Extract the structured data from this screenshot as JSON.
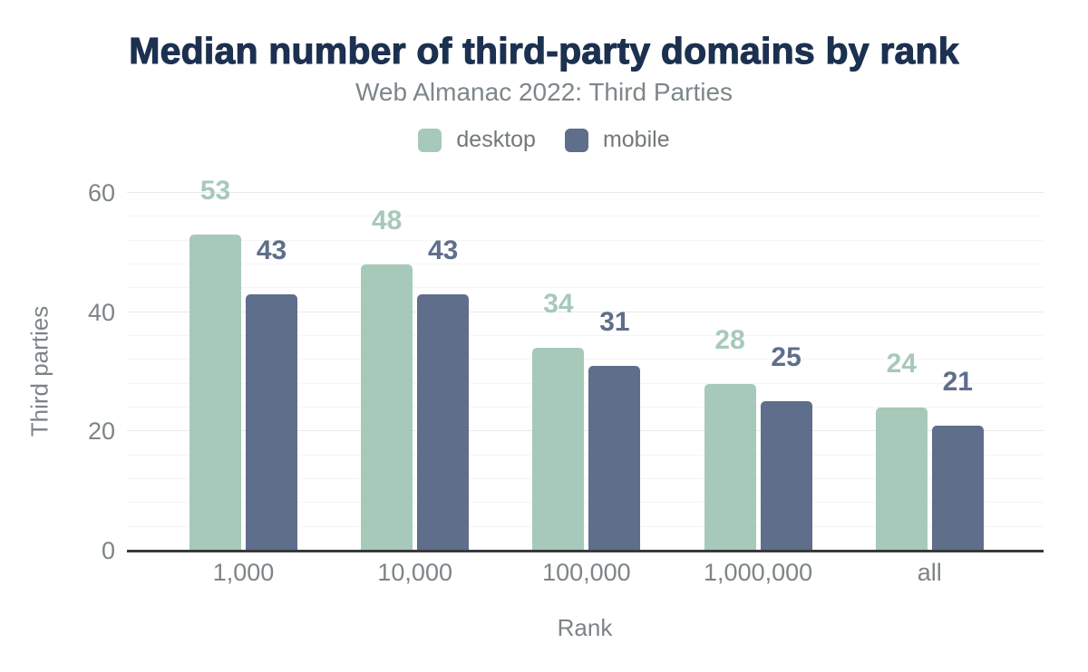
{
  "chart_data": {
    "type": "bar",
    "title": "Median number of third-party domains by rank",
    "subtitle": "Web Almanac 2022: Third Parties",
    "categories": [
      "1,000",
      "10,000",
      "100,000",
      "1,000,000",
      "all"
    ],
    "series": [
      {
        "name": "desktop",
        "color": "#a7c9b9",
        "values": [
          53,
          48,
          34,
          28,
          24
        ]
      },
      {
        "name": "mobile",
        "color": "#5f6e8a",
        "values": [
          43,
          43,
          31,
          25,
          21
        ]
      }
    ],
    "xlabel": "Rank",
    "ylabel": "Third parties",
    "ylim": [
      0,
      60
    ],
    "yticks": [
      0,
      20,
      40,
      60
    ],
    "minor_grid_step": 4,
    "grid": true,
    "legend_position": "top",
    "bar_value_labels": true,
    "colors": {
      "title": "#1c3050",
      "subtitle": "#7d868a",
      "axis_text": "#7c8487",
      "axis_line": "#37393b",
      "major_grid": "#e9e9e9",
      "minor_grid": "#f5f5f5"
    }
  }
}
